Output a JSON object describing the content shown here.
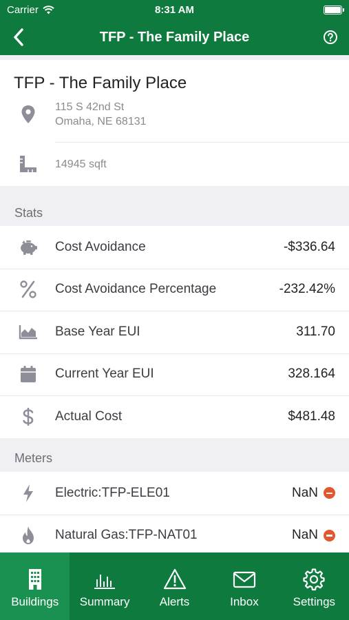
{
  "status_bar": {
    "carrier": "Carrier",
    "time": "8:31 AM"
  },
  "nav": {
    "title": "TFP - The Family Place",
    "back_icon": "chevron-left-icon",
    "help_icon": "help-circle-icon"
  },
  "building": {
    "name": "TFP - The Family Place",
    "address_line1": "115 S 42nd St",
    "address_line2": "Omaha, NE 68131",
    "area": "14945 sqft"
  },
  "stats": {
    "header": "Stats",
    "items": [
      {
        "label": "Cost Avoidance",
        "value": "-$336.64",
        "icon": "piggy-bank-icon"
      },
      {
        "label": "Cost Avoidance Percentage",
        "value": "-232.42%",
        "icon": "percent-icon"
      },
      {
        "label": "Base Year EUI",
        "value": "311.70",
        "icon": "area-chart-icon"
      },
      {
        "label": "Current Year EUI",
        "value": "328.164",
        "icon": "calendar-icon"
      },
      {
        "label": "Actual Cost",
        "value": "$481.48",
        "icon": "dollar-icon"
      }
    ]
  },
  "meters": {
    "header": "Meters",
    "items": [
      {
        "label": "Electric:TFP-ELE01",
        "value": "NaN",
        "icon": "lightning-icon"
      },
      {
        "label": "Natural Gas:TFP-NAT01",
        "value": "NaN",
        "icon": "flame-icon"
      }
    ]
  },
  "tabs": [
    {
      "label": "Buildings",
      "icon": "building-icon",
      "active": true
    },
    {
      "label": "Summary",
      "icon": "bar-chart-icon"
    },
    {
      "label": "Alerts",
      "icon": "warning-icon"
    },
    {
      "label": "Inbox",
      "icon": "envelope-icon"
    },
    {
      "label": "Settings",
      "icon": "gear-icon"
    }
  ],
  "colors": {
    "brand": "#0e7a3e",
    "tab_active": "#1a9150",
    "icon_gray": "#8e8e99",
    "alert": "#e4572e"
  }
}
